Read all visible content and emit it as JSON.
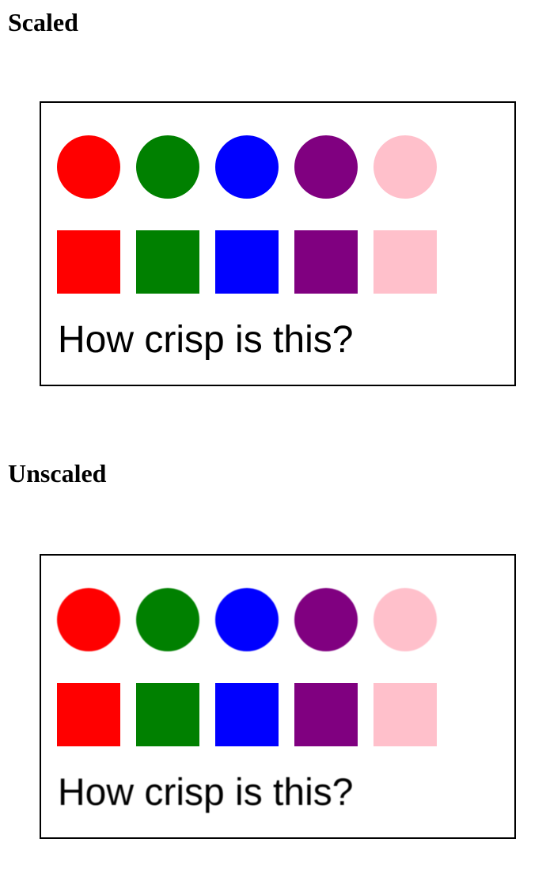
{
  "sections": [
    {
      "heading": "Scaled",
      "caption": "How crisp is this?"
    },
    {
      "heading": "Unscaled",
      "caption": "How crisp is this?"
    }
  ],
  "shape_colors": [
    "#ff0000",
    "#008000",
    "#0000ff",
    "#800080",
    "#ffc0cb"
  ]
}
